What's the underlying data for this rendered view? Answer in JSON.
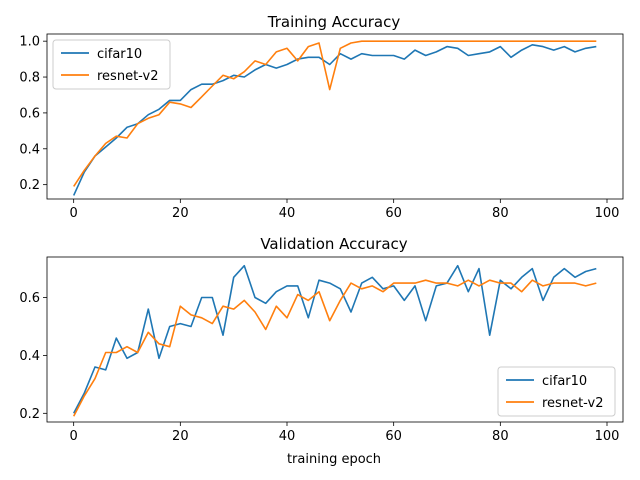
{
  "chart_data": [
    {
      "type": "line",
      "title": "Training Accuracy",
      "xlabel": "",
      "ylabel": "",
      "xlim": [
        -5,
        103
      ],
      "ylim": [
        0.12,
        1.04
      ],
      "xticks": [
        0,
        20,
        40,
        60,
        80,
        100
      ],
      "yticks": [
        0.2,
        0.4,
        0.6,
        0.8,
        1.0
      ],
      "ytick_labels": [
        "0.2",
        "0.4",
        "0.6",
        "0.8",
        "1.0"
      ],
      "legend_position": "top-left",
      "series": [
        {
          "name": "cifar10",
          "color": "#1f77b4",
          "x": [
            0,
            2,
            4,
            6,
            8,
            10,
            12,
            14,
            16,
            18,
            20,
            22,
            24,
            26,
            28,
            30,
            32,
            34,
            36,
            38,
            40,
            42,
            44,
            46,
            48,
            50,
            52,
            54,
            56,
            58,
            60,
            62,
            64,
            66,
            68,
            70,
            72,
            74,
            76,
            78,
            80,
            82,
            84,
            86,
            88,
            90,
            92,
            94,
            96,
            98
          ],
          "y": [
            0.14,
            0.27,
            0.36,
            0.41,
            0.46,
            0.52,
            0.54,
            0.59,
            0.62,
            0.67,
            0.67,
            0.73,
            0.76,
            0.76,
            0.78,
            0.81,
            0.8,
            0.84,
            0.87,
            0.85,
            0.87,
            0.9,
            0.91,
            0.91,
            0.87,
            0.93,
            0.9,
            0.93,
            0.92,
            0.92,
            0.92,
            0.9,
            0.95,
            0.92,
            0.94,
            0.97,
            0.96,
            0.92,
            0.93,
            0.94,
            0.97,
            0.91,
            0.95,
            0.98,
            0.97,
            0.95,
            0.97,
            0.94,
            0.96,
            0.97
          ]
        },
        {
          "name": "resnet-v2",
          "color": "#ff7f0e",
          "x": [
            0,
            2,
            4,
            6,
            8,
            10,
            12,
            14,
            16,
            18,
            20,
            22,
            24,
            26,
            28,
            30,
            32,
            34,
            36,
            38,
            40,
            42,
            44,
            46,
            48,
            50,
            52,
            54,
            56,
            58,
            60,
            62,
            64,
            66,
            68,
            70,
            72,
            74,
            76,
            78,
            80,
            82,
            84,
            86,
            88,
            90,
            92,
            94,
            96,
            98
          ],
          "y": [
            0.19,
            0.28,
            0.36,
            0.43,
            0.47,
            0.46,
            0.54,
            0.57,
            0.59,
            0.66,
            0.65,
            0.63,
            0.69,
            0.75,
            0.81,
            0.79,
            0.83,
            0.89,
            0.87,
            0.94,
            0.96,
            0.89,
            0.97,
            0.99,
            0.73,
            0.96,
            0.99,
            1.0,
            1.0,
            1.0,
            1.0,
            1.0,
            1.0,
            1.0,
            1.0,
            1.0,
            1.0,
            1.0,
            1.0,
            1.0,
            1.0,
            1.0,
            1.0,
            1.0,
            1.0,
            1.0,
            1.0,
            1.0,
            1.0,
            1.0
          ]
        }
      ]
    },
    {
      "type": "line",
      "title": "Validation Accuracy",
      "xlabel": "training epoch",
      "ylabel": "",
      "xlim": [
        -5,
        103
      ],
      "ylim": [
        0.17,
        0.74
      ],
      "xticks": [
        0,
        20,
        40,
        60,
        80,
        100
      ],
      "yticks": [
        0.2,
        0.4,
        0.6
      ],
      "ytick_labels": [
        "0.2",
        "0.4",
        "0.6"
      ],
      "legend_position": "bottom-right",
      "series": [
        {
          "name": "cifar10",
          "color": "#1f77b4",
          "x": [
            0,
            2,
            4,
            6,
            8,
            10,
            12,
            14,
            16,
            18,
            20,
            22,
            24,
            26,
            28,
            30,
            32,
            34,
            36,
            38,
            40,
            42,
            44,
            46,
            48,
            50,
            52,
            54,
            56,
            58,
            60,
            62,
            64,
            66,
            68,
            70,
            72,
            74,
            76,
            78,
            80,
            82,
            84,
            86,
            88,
            90,
            92,
            94,
            96,
            98
          ],
          "y": [
            0.2,
            0.27,
            0.36,
            0.35,
            0.46,
            0.39,
            0.41,
            0.56,
            0.39,
            0.5,
            0.51,
            0.5,
            0.6,
            0.6,
            0.47,
            0.67,
            0.71,
            0.6,
            0.58,
            0.62,
            0.64,
            0.64,
            0.53,
            0.66,
            0.65,
            0.63,
            0.55,
            0.65,
            0.67,
            0.63,
            0.64,
            0.59,
            0.64,
            0.52,
            0.64,
            0.65,
            0.71,
            0.62,
            0.7,
            0.47,
            0.66,
            0.63,
            0.67,
            0.7,
            0.59,
            0.67,
            0.7,
            0.67,
            0.69,
            0.7
          ]
        },
        {
          "name": "resnet-v2",
          "color": "#ff7f0e",
          "x": [
            0,
            2,
            4,
            6,
            8,
            10,
            12,
            14,
            16,
            18,
            20,
            22,
            24,
            26,
            28,
            30,
            32,
            34,
            36,
            38,
            40,
            42,
            44,
            46,
            48,
            50,
            52,
            54,
            56,
            58,
            60,
            62,
            64,
            66,
            68,
            70,
            72,
            74,
            76,
            78,
            80,
            82,
            84,
            86,
            88,
            90,
            92,
            94,
            96,
            98
          ],
          "y": [
            0.19,
            0.26,
            0.32,
            0.41,
            0.41,
            0.43,
            0.41,
            0.48,
            0.44,
            0.43,
            0.57,
            0.54,
            0.53,
            0.51,
            0.57,
            0.56,
            0.59,
            0.55,
            0.49,
            0.57,
            0.53,
            0.61,
            0.59,
            0.62,
            0.52,
            0.59,
            0.65,
            0.63,
            0.64,
            0.62,
            0.65,
            0.65,
            0.65,
            0.66,
            0.65,
            0.65,
            0.64,
            0.66,
            0.64,
            0.66,
            0.65,
            0.65,
            0.62,
            0.66,
            0.64,
            0.65,
            0.65,
            0.65,
            0.64,
            0.65
          ]
        }
      ]
    }
  ]
}
